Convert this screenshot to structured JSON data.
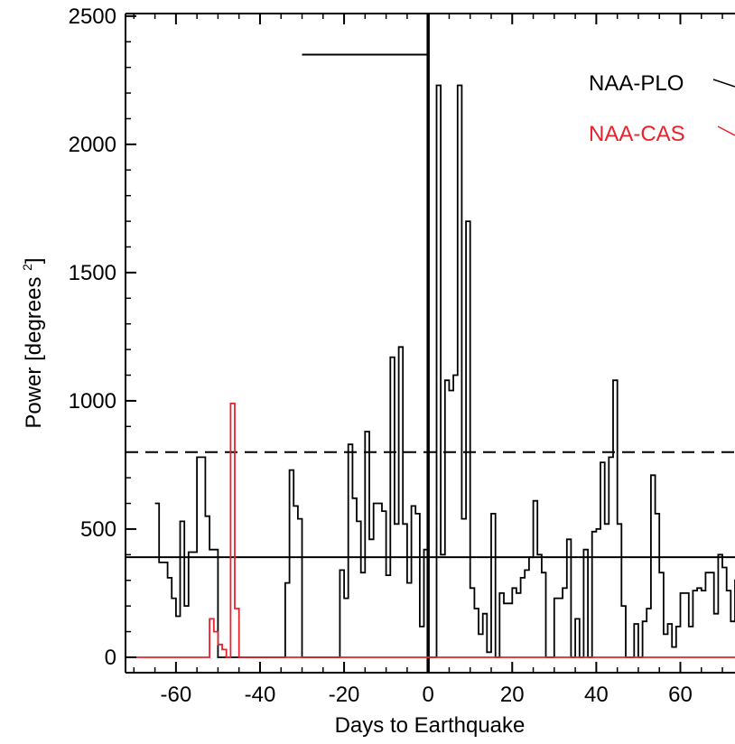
{
  "chart_data": {
    "type": "line",
    "xlabel": "Days to Earthquake",
    "ylabel": "Power [degrees ",
    "ylabel_superscript": "2",
    "ylabel_close": "]",
    "xlim": [
      -72,
      73
    ],
    "ylim": [
      -60,
      2510
    ],
    "xticks": [
      -60,
      -40,
      -20,
      0,
      20,
      40,
      60
    ],
    "xtick_labels": [
      "-60",
      "-40",
      "-20",
      "0",
      "20",
      "40",
      "60"
    ],
    "yticks": [
      0,
      500,
      1000,
      1500,
      2000,
      2500
    ],
    "ytick_labels": [
      "0",
      "500",
      "1000",
      "1500",
      "2000",
      "2500"
    ],
    "threshold_solid": 390,
    "threshold_dashed": 800,
    "earthquake_day": 0,
    "interval_marker": {
      "x_start": -30,
      "x_end": 0,
      "y": 2350
    },
    "legend_placement": "top-right",
    "series": [
      {
        "name": "NAA-PLO",
        "color": "#000000",
        "x_start": -65,
        "values": [
          600,
          370,
          370,
          310,
          230,
          160,
          530,
          200,
          410,
          410,
          780,
          780,
          550,
          420,
          420,
          0,
          0,
          0,
          0,
          0,
          0,
          0,
          0,
          0,
          0,
          0,
          0,
          0,
          0,
          0,
          0,
          290,
          730,
          590,
          540,
          0,
          0,
          0,
          0,
          0,
          0,
          0,
          0,
          0,
          340,
          230,
          830,
          620,
          530,
          330,
          880,
          460,
          600,
          600,
          570,
          320,
          1170,
          520,
          1210,
          520,
          290,
          590,
          560,
          120,
          420,
          0,
          0,
          2230,
          400,
          1080,
          1040,
          1100,
          2230,
          540,
          1700,
          270,
          190,
          90,
          170,
          20,
          560,
          0,
          250,
          210,
          210,
          270,
          250,
          310,
          340,
          390,
          610,
          400,
          330,
          0,
          0,
          230,
          230,
          270,
          460,
          0,
          150,
          0,
          420,
          0,
          490,
          500,
          760,
          520,
          780,
          1080,
          520,
          200,
          0,
          0,
          130,
          0,
          140,
          190,
          710,
          560,
          330,
          90,
          130,
          40,
          120,
          250,
          250,
          120,
          260,
          270,
          260,
          330,
          330,
          170,
          400,
          350,
          260,
          140,
          300,
          60,
          200,
          230,
          190,
          150,
          90,
          200,
          220,
          240
        ]
      },
      {
        "name": "NAA-CAS",
        "color": "#e8232d",
        "x_start": -72,
        "values": [
          0,
          0,
          0,
          0,
          0,
          0,
          0,
          0,
          0,
          0,
          0,
          0,
          0,
          0,
          0,
          0,
          0,
          0,
          0,
          0,
          150,
          100,
          50,
          30,
          0,
          990,
          190,
          0,
          0,
          0,
          0,
          0,
          0,
          0,
          0,
          0,
          0,
          0,
          0,
          0,
          0,
          0,
          0,
          0,
          0,
          0,
          0,
          0,
          0,
          0,
          0,
          0,
          0,
          0,
          0,
          0,
          0,
          0,
          0,
          0,
          0,
          0,
          0,
          0,
          0,
          0,
          0,
          0,
          0,
          0,
          0,
          0,
          0,
          0,
          0,
          0,
          0,
          0,
          0,
          0,
          0,
          0,
          0,
          0,
          0,
          0,
          0,
          0,
          0,
          0,
          0,
          0,
          0,
          0,
          0,
          0,
          0,
          0,
          0,
          0,
          0,
          0,
          0,
          0,
          0,
          0,
          0,
          0,
          0,
          0,
          0,
          0,
          0,
          0,
          0,
          0,
          0,
          0,
          0,
          0,
          0,
          0,
          0,
          0,
          0,
          0,
          0,
          0,
          0,
          0,
          0,
          0,
          0,
          0,
          0,
          0,
          0,
          0,
          0,
          0,
          0,
          0,
          0,
          0,
          0,
          0,
          0,
          0,
          0,
          0
        ]
      }
    ]
  }
}
